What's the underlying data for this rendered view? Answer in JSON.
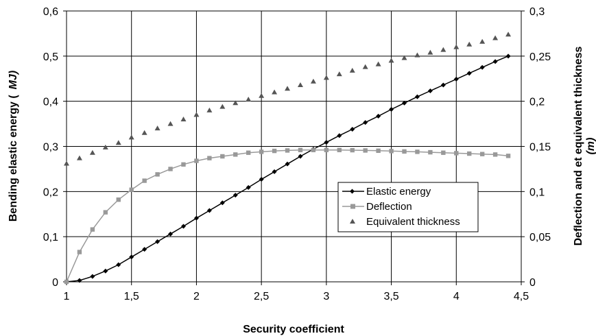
{
  "chart_data": {
    "type": "line",
    "xlabel": "Security coefficient",
    "ylabel_left": "Bending elastic energy (",
    "ylabel_left_unit": "MJ)",
    "ylabel_right": "Deflection and et equivalent thickness",
    "ylabel_right_unit": "(m)",
    "xlim": [
      1,
      4.5
    ],
    "ylim_left": [
      0,
      0.6
    ],
    "ylim_right": [
      0,
      0.3
    ],
    "x_ticks": [
      "1",
      "1,5",
      "2",
      "2,5",
      "3",
      "3,5",
      "4",
      "4,5"
    ],
    "y_left_ticks": [
      "0",
      "0,1",
      "0,2",
      "0,3",
      "0,4",
      "0,5",
      "0,6"
    ],
    "y_right_ticks": [
      "0",
      "0,05",
      "0,1",
      "0,15",
      "0,2",
      "0,25",
      "0,3"
    ],
    "grid": true,
    "legend_position": "center-right",
    "x": [
      1.0,
      1.1,
      1.2,
      1.3,
      1.4,
      1.5,
      1.6,
      1.7,
      1.8,
      1.9,
      2.0,
      2.1,
      2.2,
      2.3,
      2.4,
      2.5,
      2.6,
      2.7,
      2.8,
      2.9,
      3.0,
      3.1,
      3.2,
      3.3,
      3.4,
      3.5,
      3.6,
      3.7,
      3.8,
      3.9,
      4.0,
      4.1,
      4.2,
      4.3,
      4.4
    ],
    "series": [
      {
        "name": "Elastic energy",
        "axis": "left",
        "marker": "diamond",
        "color": "#000000",
        "values": [
          0.0,
          0.003,
          0.012,
          0.024,
          0.038,
          0.055,
          0.072,
          0.089,
          0.106,
          0.123,
          0.141,
          0.158,
          0.175,
          0.192,
          0.209,
          0.227,
          0.244,
          0.261,
          0.278,
          0.294,
          0.309,
          0.324,
          0.338,
          0.353,
          0.367,
          0.382,
          0.396,
          0.41,
          0.423,
          0.436,
          0.449,
          0.462,
          0.475,
          0.488,
          0.5
        ]
      },
      {
        "name": "Deflection",
        "axis": "right",
        "marker": "square",
        "color": "#999999",
        "values": [
          0.0,
          0.033,
          0.058,
          0.077,
          0.091,
          0.102,
          0.112,
          0.119,
          0.125,
          0.13,
          0.134,
          0.137,
          0.139,
          0.141,
          0.143,
          0.144,
          0.145,
          0.1455,
          0.146,
          0.146,
          0.146,
          0.146,
          0.1458,
          0.1455,
          0.1452,
          0.1448,
          0.1444,
          0.144,
          0.1435,
          0.143,
          0.1425,
          0.142,
          0.1415,
          0.141,
          0.1395
        ]
      },
      {
        "name": "Equivalent thickness",
        "axis": "right",
        "marker": "triangle",
        "color": "#555555",
        "values": [
          0.131,
          0.137,
          0.143,
          0.149,
          0.154,
          0.16,
          0.165,
          0.17,
          0.175,
          0.18,
          0.185,
          0.19,
          0.194,
          0.198,
          0.202,
          0.206,
          0.21,
          0.214,
          0.218,
          0.222,
          0.226,
          0.23,
          0.234,
          0.238,
          0.241,
          0.245,
          0.248,
          0.251,
          0.254,
          0.257,
          0.26,
          0.263,
          0.266,
          0.27,
          0.274
        ]
      }
    ]
  }
}
